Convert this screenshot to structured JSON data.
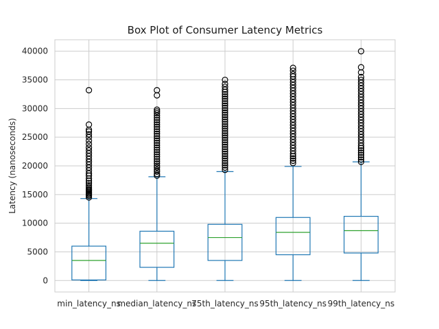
{
  "chart_data": {
    "type": "box",
    "title": "Box Plot of Consumer Latency Metrics",
    "xlabel": "",
    "ylabel": "Latency (nanoseconds)",
    "ylim": [
      -2000,
      42000
    ],
    "yticks": [
      0,
      5000,
      10000,
      15000,
      20000,
      25000,
      30000,
      35000,
      40000
    ],
    "ytick_labels": [
      "0",
      "5000",
      "10000",
      "15000",
      "20000",
      "25000",
      "30000",
      "35000",
      "40000"
    ],
    "grid": true,
    "colors": {
      "box": "#1f77b4",
      "median": "#2ca02c",
      "flier": "#000000",
      "grid": "#cccccc"
    },
    "series": [
      {
        "name": "min_latency_ns",
        "whisker_low": 0,
        "q1": 100,
        "median": 3500,
        "q3": 6000,
        "whisker_high": 14300,
        "outliers": [
          14500,
          14800,
          15000,
          15200,
          15400,
          15600,
          15800,
          16000,
          16300,
          16600,
          17000,
          17400,
          17800,
          18300,
          18700,
          19200,
          19700,
          20200,
          20700,
          21200,
          21700,
          22200,
          22700,
          23200,
          23800,
          24400,
          25000,
          25500,
          26000,
          26300,
          27200,
          33200
        ]
      },
      {
        "name": "median_latency_ns",
        "whisker_low": 0,
        "q1": 2300,
        "median": 6500,
        "q3": 8600,
        "whisker_high": 18100,
        "outliers": [
          18300,
          18600,
          19000,
          19300,
          19700,
          20000,
          20400,
          20800,
          21200,
          21600,
          22000,
          22400,
          22800,
          23200,
          23600,
          24000,
          24400,
          24800,
          25200,
          25600,
          26000,
          26400,
          26800,
          27200,
          27600,
          28000,
          28400,
          28800,
          29200,
          29500,
          29800,
          32300,
          33200
        ]
      },
      {
        "name": "75th_latency_ns",
        "whisker_low": 0,
        "q1": 3500,
        "median": 7500,
        "q3": 9800,
        "whisker_high": 19000,
        "outliers": [
          19300,
          19700,
          20100,
          20500,
          20900,
          21300,
          21700,
          22100,
          22500,
          22900,
          23300,
          23700,
          24100,
          24500,
          24900,
          25300,
          25700,
          26100,
          26500,
          26900,
          27300,
          27700,
          28100,
          28500,
          28900,
          29300,
          29700,
          30100,
          30500,
          30900,
          31300,
          31700,
          32100,
          32500,
          32900,
          33300,
          33800,
          34300,
          35000
        ]
      },
      {
        "name": "95th_latency_ns",
        "whisker_low": 0,
        "q1": 4500,
        "median": 8400,
        "q3": 11000,
        "whisker_high": 19900,
        "outliers": [
          20500,
          20900,
          21300,
          21700,
          22100,
          22600,
          23100,
          23600,
          24100,
          24600,
          25100,
          25600,
          26100,
          26600,
          27100,
          27600,
          28100,
          28600,
          29100,
          29600,
          30100,
          30600,
          31100,
          31600,
          32100,
          32600,
          33100,
          33600,
          34100,
          34600,
          35100,
          35600,
          36000,
          36600,
          37100
        ]
      },
      {
        "name": "99th_latency_ns",
        "whisker_low": 0,
        "q1": 4800,
        "median": 8700,
        "q3": 11200,
        "whisker_high": 20700,
        "outliers": [
          20700,
          21100,
          21500,
          21900,
          22300,
          22700,
          23100,
          23500,
          24000,
          24500,
          25000,
          25500,
          26000,
          26500,
          27000,
          27500,
          28000,
          28500,
          29000,
          29500,
          30000,
          30500,
          31000,
          31500,
          32000,
          32500,
          33000,
          33500,
          34000,
          34500,
          35000,
          35500,
          36300,
          37200,
          40000
        ]
      }
    ]
  }
}
